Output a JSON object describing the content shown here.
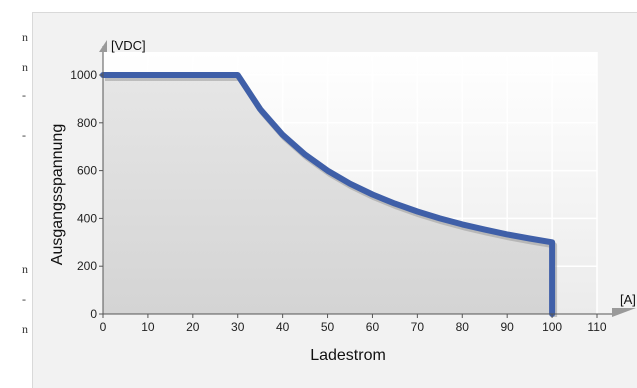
{
  "side_fragments": [
    "n",
    "n",
    "-",
    "-",
    "n",
    "-",
    "n"
  ],
  "chart_data": {
    "type": "line",
    "title": "",
    "xlabel": "Ladestrom",
    "ylabel": "Ausgangsspannung",
    "x_unit": "[A]",
    "y_unit": "[VDC]",
    "xlim": [
      0,
      110
    ],
    "ylim": [
      0,
      1000
    ],
    "x_ticks": [
      0,
      10,
      20,
      30,
      40,
      50,
      60,
      70,
      80,
      90,
      100,
      110
    ],
    "y_ticks": [
      0,
      200,
      400,
      600,
      800,
      1000
    ],
    "grid": true,
    "fill_under": true,
    "line_color": "#3f5fa8",
    "series": [
      {
        "values_xy": [
          [
            0,
            1000
          ],
          [
            30,
            1000
          ],
          [
            35,
            857
          ],
          [
            40,
            750
          ],
          [
            45,
            667
          ],
          [
            50,
            600
          ],
          [
            55,
            545
          ],
          [
            60,
            500
          ],
          [
            65,
            462
          ],
          [
            70,
            429
          ],
          [
            75,
            400
          ],
          [
            80,
            375
          ],
          [
            85,
            353
          ],
          [
            90,
            333
          ],
          [
            95,
            316
          ],
          [
            100,
            300
          ],
          [
            100,
            0
          ]
        ]
      }
    ]
  }
}
